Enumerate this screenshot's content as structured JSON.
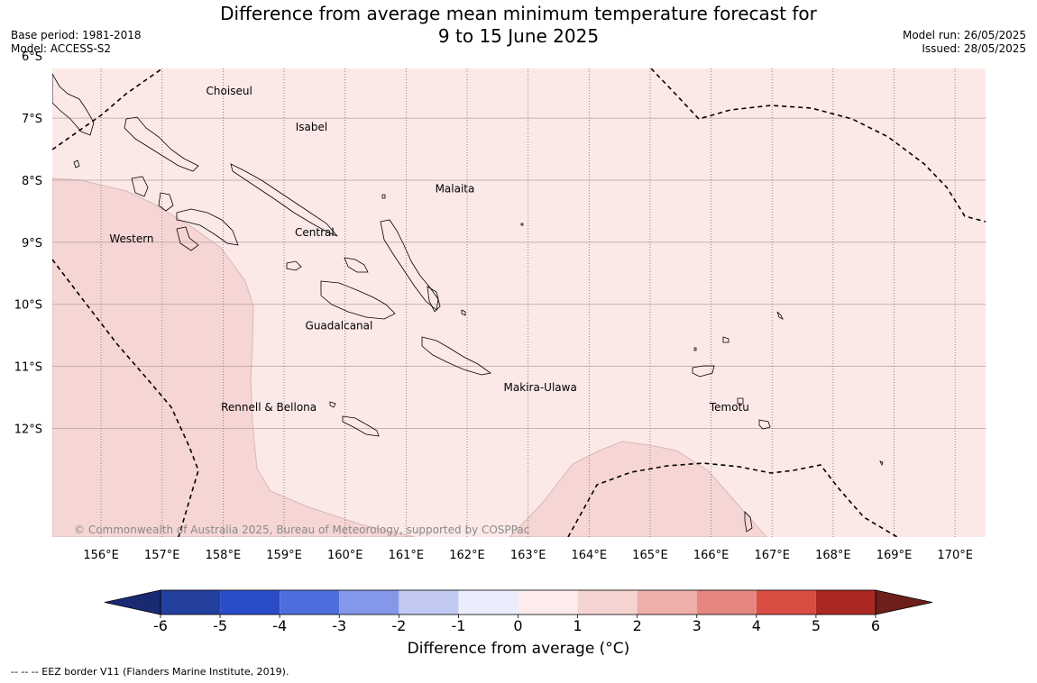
{
  "title": {
    "line1": "Difference from average mean minimum temperature forecast for",
    "line2": "9 to 15 June 2025"
  },
  "meta": {
    "base_period": "Base period: 1981-2018",
    "model": "Model: ACCESS-S2",
    "model_run": "Model run: 26/05/2025",
    "issued": "Issued: 28/05/2025"
  },
  "map": {
    "lon_range": [
      155.2,
      170.5
    ],
    "lat_range": [
      -6.2,
      -13.75
    ],
    "lat_ticks": [
      {
        "value": -6,
        "label": "6°S"
      },
      {
        "value": -7,
        "label": "7°S"
      },
      {
        "value": -8,
        "label": "8°S"
      },
      {
        "value": -9,
        "label": "9°S"
      },
      {
        "value": -10,
        "label": "10°S"
      },
      {
        "value": -11,
        "label": "11°S"
      },
      {
        "value": -12,
        "label": "12°S"
      }
    ],
    "lon_ticks": [
      {
        "value": 156,
        "label": "156°E"
      },
      {
        "value": 157,
        "label": "157°E"
      },
      {
        "value": 158,
        "label": "158°E"
      },
      {
        "value": 159,
        "label": "159°E"
      },
      {
        "value": 160,
        "label": "160°E"
      },
      {
        "value": 161,
        "label": "161°E"
      },
      {
        "value": 162,
        "label": "162°E"
      },
      {
        "value": 163,
        "label": "163°E"
      },
      {
        "value": 164,
        "label": "164°E"
      },
      {
        "value": 165,
        "label": "165°E"
      },
      {
        "value": 166,
        "label": "166°E"
      },
      {
        "value": 167,
        "label": "167°E"
      },
      {
        "value": 168,
        "label": "168°E"
      },
      {
        "value": 169,
        "label": "169°E"
      },
      {
        "value": 170,
        "label": "170°E"
      }
    ],
    "provinces": [
      {
        "name": "Choiseul",
        "lon": 158.1,
        "lat": -6.62
      },
      {
        "name": "Isabel",
        "lon": 159.45,
        "lat": -7.2
      },
      {
        "name": "Malaita",
        "lon": 161.8,
        "lat": -8.2
      },
      {
        "name": "Central",
        "lon": 159.5,
        "lat": -8.9
      },
      {
        "name": "Western",
        "lon": 156.5,
        "lat": -9.0
      },
      {
        "name": "Guadalcanal",
        "lon": 159.9,
        "lat": -10.4
      },
      {
        "name": "Makira-Ulawa",
        "lon": 163.2,
        "lat": -11.4
      },
      {
        "name": "Temotu",
        "lon": 166.3,
        "lat": -11.72
      },
      {
        "name": "Rennell & Bellona",
        "lon": 158.75,
        "lat": -11.72
      }
    ],
    "copyright": "© Commonwealth of Australia 2025, Bureau of Meteorology, supported by COSPPac",
    "colors": {
      "anom_0_1": "#fbe9e8",
      "anom_1_2": "#f5d6d4",
      "coast": "#000000",
      "grid_lat": "#b4a0a0",
      "grid_lon": "#7a6a6a"
    }
  },
  "colorbar": {
    "label": "Difference from average (°C)",
    "ticks": [
      "-6",
      "-5",
      "-4",
      "-3",
      "-2",
      "-1",
      "0",
      "1",
      "2",
      "3",
      "4",
      "5",
      "6"
    ],
    "colors": [
      "#23409f",
      "#2a4cc8",
      "#4f6ede",
      "#8597e8",
      "#c1c9f2",
      "#e9edfc",
      "#fdeceb",
      "#f5d3d0",
      "#eeaeaa",
      "#e5877f",
      "#d94d43",
      "#aa2822"
    ],
    "under_color": "#1a2a72",
    "over_color": "#6e1e1b"
  },
  "footnote": "--  --  -- EEZ border V11 (Flanders Marine Institute, 2019)."
}
